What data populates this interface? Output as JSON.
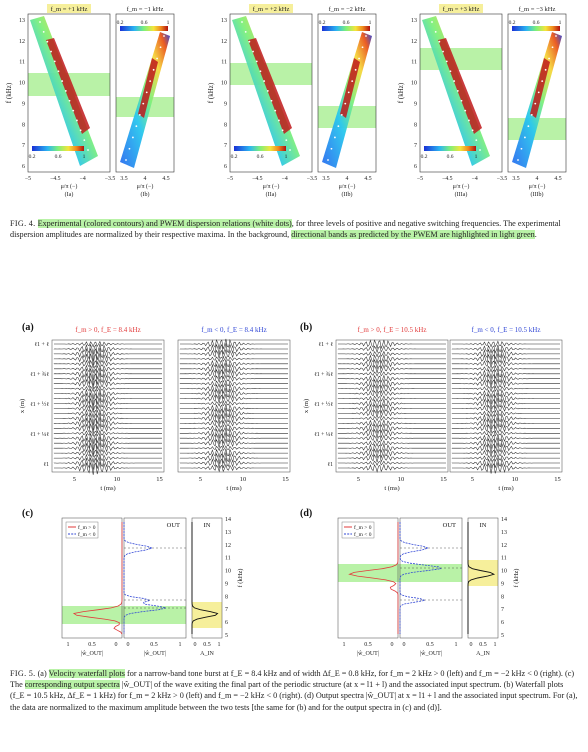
{
  "fig4": {
    "panels": [
      {
        "id": "I",
        "left_title": "f_m = +1 kHz",
        "right_title": "f_m = −1 kHz",
        "left_sub": "(Ia)",
        "right_sub": "(Ib)"
      },
      {
        "id": "II",
        "left_title": "f_m = +2 kHz",
        "right_title": "f_m = −2 kHz",
        "left_sub": "(IIa)",
        "right_sub": "(IIb)"
      },
      {
        "id": "III",
        "left_title": "f_m = +3 kHz",
        "right_title": "f_m = −3 kHz",
        "left_sub": "(IIIa)",
        "right_sub": "(IIIb)"
      }
    ],
    "y_label": "f (kHz)",
    "y_ticks": [
      "13",
      "12",
      "11",
      "10",
      "9",
      "8",
      "7",
      "6"
    ],
    "x_label": "μ/π (−)",
    "x_ticks_left": [
      "−5",
      "−4.5",
      "−4",
      "−3.5"
    ],
    "x_ticks_right": [
      "3.5",
      "4",
      "4.5"
    ],
    "colorbar_ticks": [
      "0.2",
      "0.6",
      "1"
    ],
    "caption_label": "FIG. 4.",
    "caption_hl1": "Experimental (colored contours) and PWEM dispersion relations (white dots)",
    "caption_mid": ", for three levels of positive and negative switching frequencies. The experimental dispersion amplitudes are normalized by their respective maxima. In the background, ",
    "caption_hl2": "directional bands as predicted by the PWEM are highlighted in light green",
    "caption_end": "."
  },
  "fig5": {
    "panel_a": {
      "tag": "(a)",
      "left_title": "f_m > 0, f_E = 8.4 kHz",
      "right_title": "f_m < 0, f_E = 8.4 kHz"
    },
    "panel_b": {
      "tag": "(b)",
      "left_title": "f_m > 0, f_E = 10.5 kHz",
      "right_title": "f_m < 0, f_E = 10.5 kHz"
    },
    "waterfall_y_label": "x (m)",
    "waterfall_y_ticks_a": [
      "ℓ1 + ℓ",
      "ℓ1 + ¾ℓ",
      "ℓ1 + ½ℓ",
      "ℓ1 + ¼ℓ",
      "ℓ1"
    ],
    "waterfall_x_ticks": [
      "5",
      "10",
      "15"
    ],
    "waterfall_x_label": "t (ms)",
    "panel_c": {
      "tag": "(c)",
      "out": "OUT",
      "in": "IN",
      "legend_pos": "f_m > 0",
      "legend_neg": "f_m < 0",
      "x1": "|ŵ_OUT|",
      "x2": "|ŵ_OUT|",
      "x3": "A_IN",
      "x1_ticks": [
        "1",
        "0.5",
        "0"
      ],
      "x2_ticks": [
        "0",
        "0.5",
        "1"
      ],
      "x3_ticks": [
        "0",
        "0.5",
        "1"
      ]
    },
    "panel_d": {
      "tag": "(d)",
      "out": "OUT",
      "in": "IN",
      "legend_pos": "f_m > 0",
      "legend_neg": "f_m < 0",
      "x1": "|ŵ_OUT|",
      "x2": "|ŵ_OUT|",
      "x3": "A_IN",
      "x1_ticks": [
        "1",
        "0.5",
        "0"
      ],
      "x2_ticks": [
        "0",
        "0.5",
        "1"
      ],
      "x3_ticks": [
        "0",
        "0.5",
        "1"
      ]
    },
    "spec_y_ticks": [
      "14",
      "13",
      "12",
      "11",
      "10",
      "9",
      "8",
      "7",
      "6",
      "5"
    ],
    "spec_y_label": "f (kHz)",
    "caption_label": "FIG. 5.",
    "caption_t1": "(a) ",
    "caption_hl1": "Velocity waterfall plots",
    "caption_t2": " for a narrow-band tone burst at f_E = 8.4 kHz and of width Δf_E = 0.8 kHz, for f_m = 2 kHz > 0 (left) and f_m = −2 kHz < 0 (right). (c) The ",
    "caption_hl2": "corresponding output spectra",
    "caption_t3": " |ŵ_OUT| of the wave exiting the final part of the periodic structure (at x = l1 + l) and the associated input spectrum. (b) Waterfall plots (f_E = 10.5 kHz, Δf_E = 1 kHz) for f_m = 2 kHz > 0 (left) and f_m = −2 kHz < 0 (right). (d) Output spectra |ŵ_OUT| at x = l1 + l and the associated input spectrum. For (a), the data are normalized to the maximum amplitude between the two tests [the same for (b) and for the output spectra in (c) and (d)]."
  },
  "colors": {
    "highlight_green": "#b9f2a7",
    "highlight_yellow": "#f6ef9b",
    "pos_series": "#e23b3b",
    "neg_series": "#3147d6"
  }
}
